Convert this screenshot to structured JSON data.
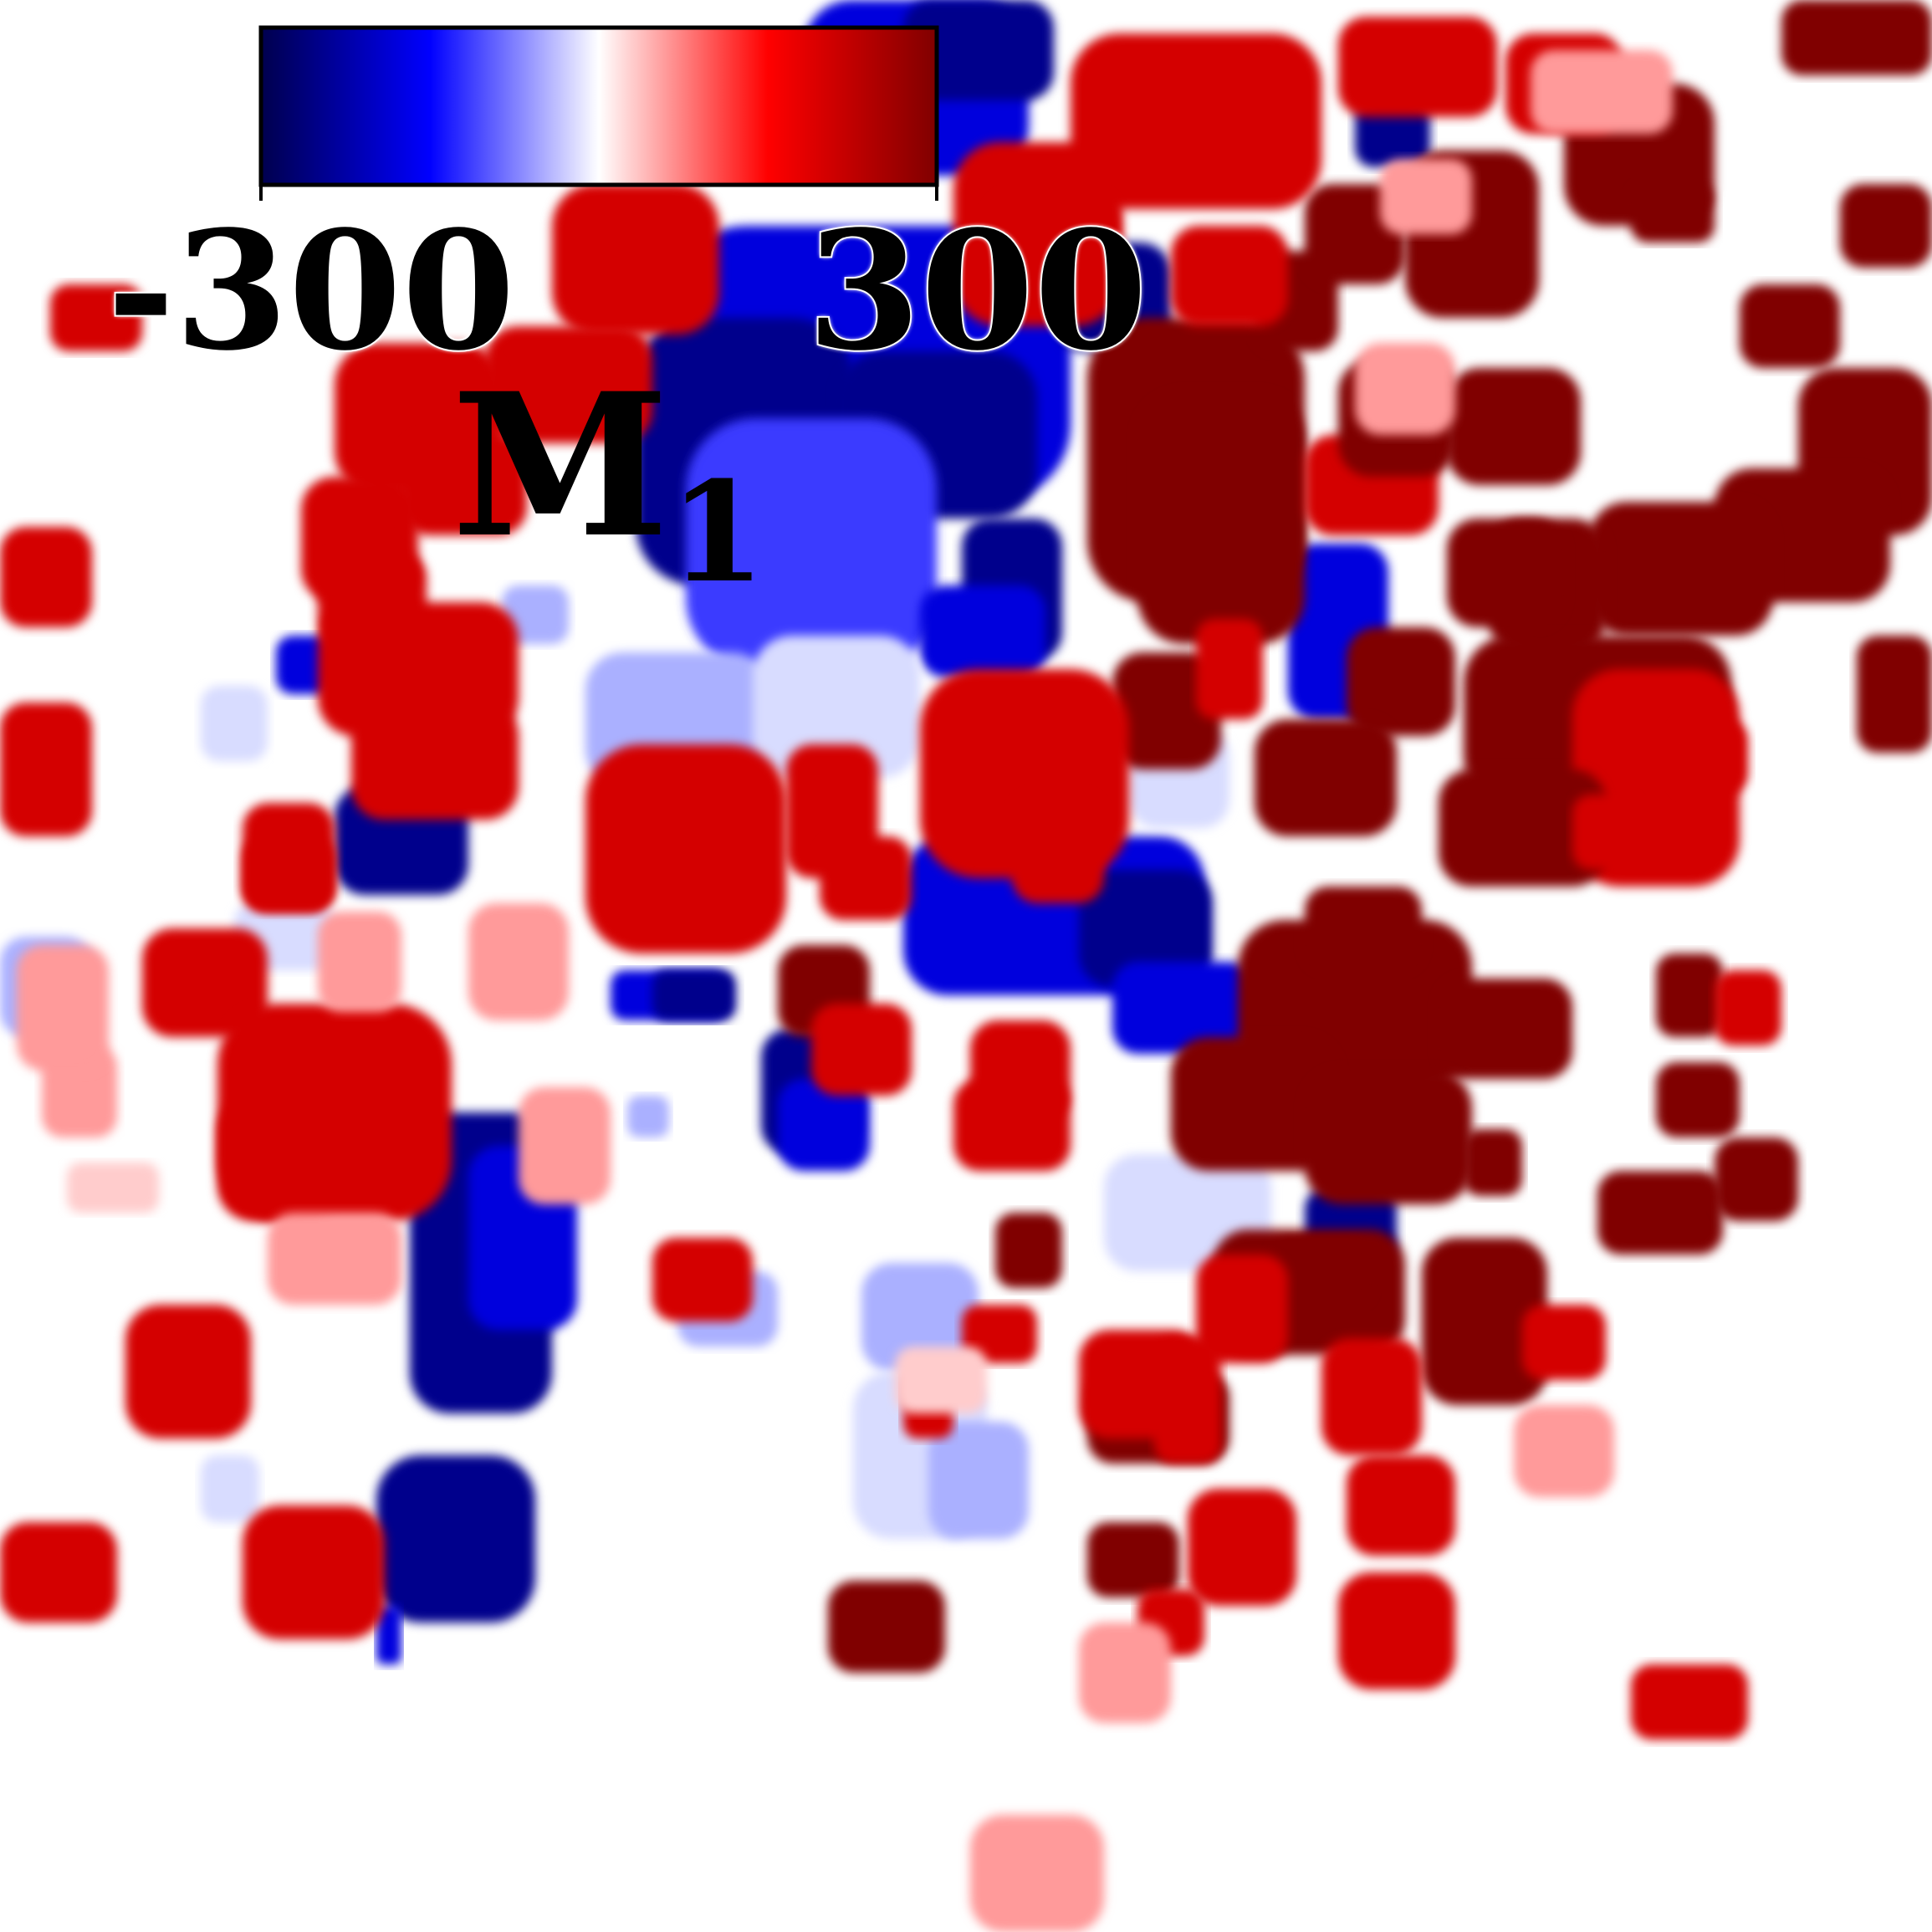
{
  "figure": {
    "panel_label": {
      "main": "M",
      "subscript": "1"
    },
    "colorbar": {
      "min_label": "-300",
      "max_label": "300",
      "colormap": "seismic",
      "colors": [
        "#00004d",
        "#0000ff",
        "#ffffff",
        "#ff0000",
        "#800000"
      ]
    },
    "background_color": "#ffffff"
  }
}
